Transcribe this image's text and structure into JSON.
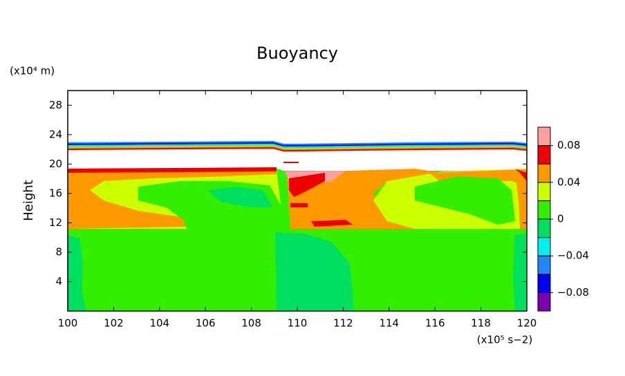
{
  "chart_data": {
    "type": "contour",
    "title": "Buoyancy",
    "y_label": "Height",
    "y_unit": "(x10⁴ m)",
    "x_unit": "(x10⁵ s−2)",
    "xlim": [
      100,
      120
    ],
    "xticks": [
      100,
      102,
      104,
      106,
      108,
      110,
      112,
      114,
      116,
      118,
      120
    ],
    "ylim": [
      0,
      30
    ],
    "yticks": [
      4,
      8,
      12,
      16,
      20,
      24,
      28
    ],
    "levels": [
      -0.1,
      -0.08,
      -0.06,
      -0.04,
      -0.02,
      0,
      0.02,
      0.04,
      0.06,
      0.08,
      0.1
    ],
    "colors": [
      "#7a00b0",
      "#0000f0",
      "#1e88ff",
      "#00f0f0",
      "#00e060",
      "#33ee00",
      "#ccff00",
      "#ff9900",
      "#ee0000",
      "#ffa0a0"
    ],
    "colorbar_ticks": [
      {
        "value": -0.08,
        "label": "−0.08"
      },
      {
        "value": -0.04,
        "label": "−0.04"
      },
      0,
      0.04,
      0.08
    ]
  }
}
